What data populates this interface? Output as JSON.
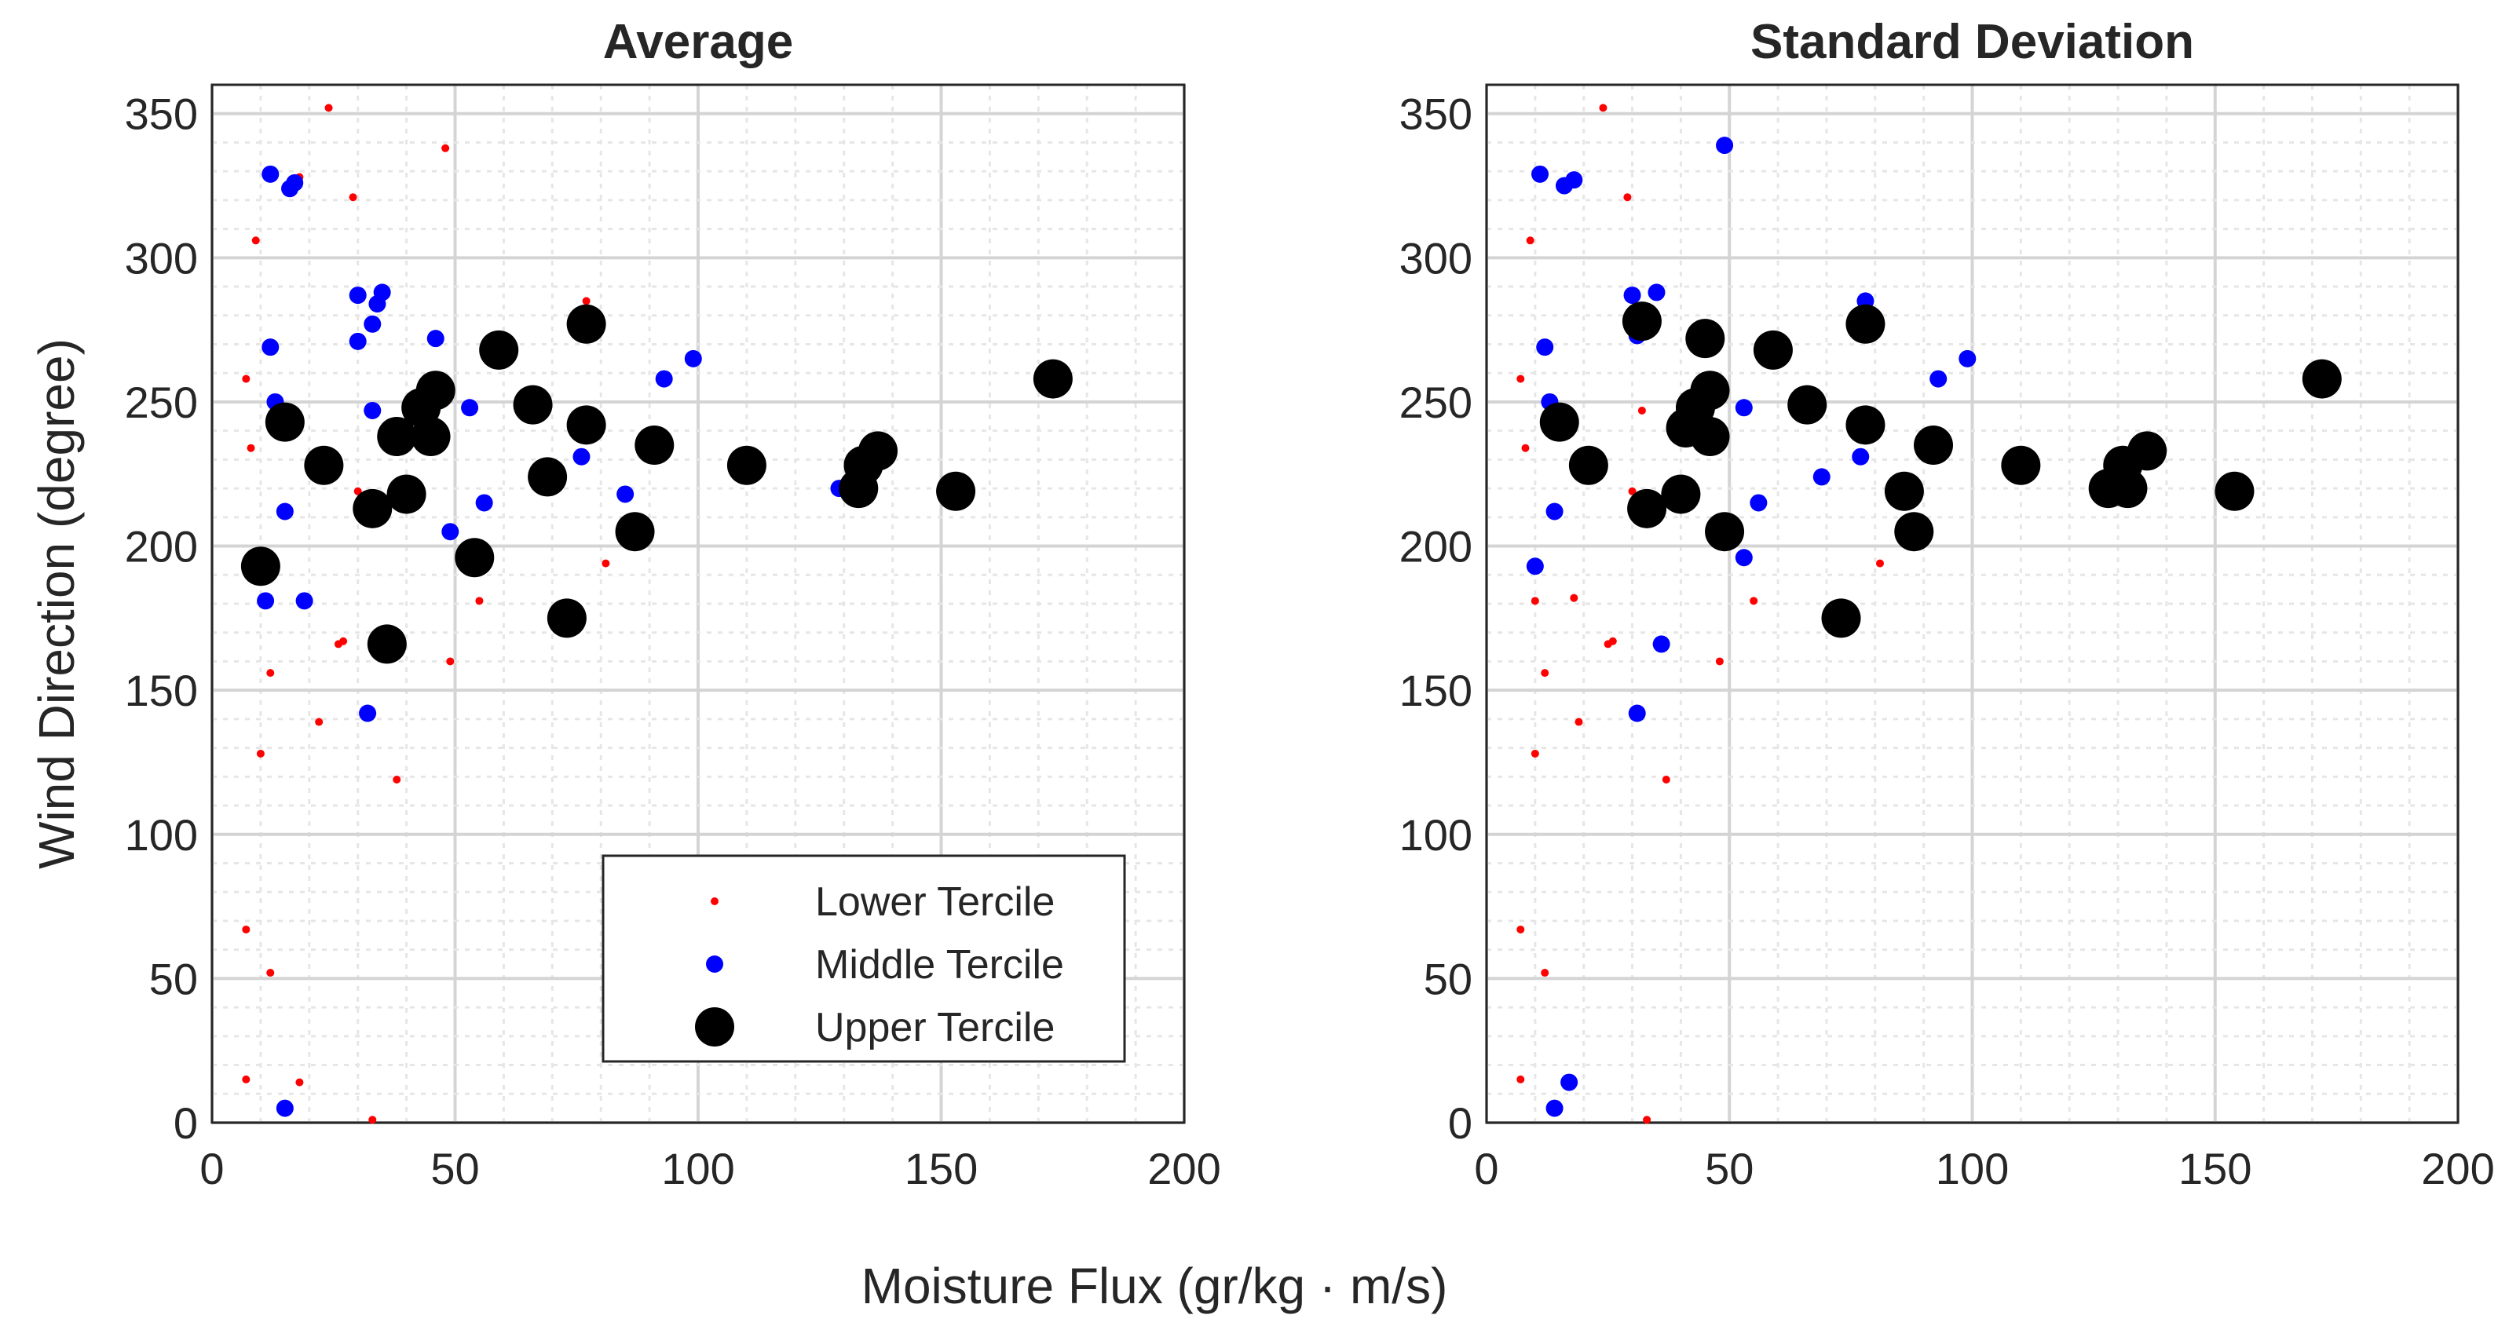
{
  "figure": {
    "xlabel": "Moisture Flux (gr/kg · m/s)"
  },
  "legend": {
    "entries": [
      {
        "label": "Lower Tercile",
        "color": "#ff0000",
        "marker": "small-dot"
      },
      {
        "label": "Middle Tercile",
        "color": "#0000ff",
        "marker": "medium-dot"
      },
      {
        "label": "Upper Tercile",
        "color": "#000000",
        "marker": "large-dot"
      }
    ]
  },
  "chart_data": [
    {
      "type": "scatter",
      "title": "Average",
      "xlabel": "Moisture Flux (gr/kg · m/s)",
      "ylabel": "Wind Direction (degree)",
      "xlim": [
        0,
        200
      ],
      "ylim": [
        0,
        360
      ],
      "xticks": [
        0,
        50,
        100,
        150,
        200
      ],
      "yticks": [
        0,
        50,
        100,
        150,
        200,
        250,
        300,
        350
      ],
      "grid": true,
      "legend_position": "lower-right",
      "series": [
        {
          "name": "Lower Tercile",
          "color": "#ff0000",
          "size": "small",
          "points": [
            [
              24,
              352
            ],
            [
              48,
              338
            ],
            [
              18,
              328
            ],
            [
              29,
              321
            ],
            [
              9,
              306
            ],
            [
              7,
              258
            ],
            [
              8,
              234
            ],
            [
              12,
              156
            ],
            [
              10,
              128
            ],
            [
              22,
              139
            ],
            [
              26,
              166
            ],
            [
              27,
              167
            ],
            [
              38,
              119
            ],
            [
              55,
              181
            ],
            [
              81,
              194
            ],
            [
              49,
              160
            ],
            [
              7,
              67
            ],
            [
              12,
              52
            ],
            [
              7,
              15
            ],
            [
              18,
              14
            ],
            [
              33,
              1
            ],
            [
              77,
              285
            ],
            [
              33,
              142
            ],
            [
              30,
              219
            ]
          ]
        },
        {
          "name": "Middle Tercile",
          "color": "#0000ff",
          "size": "medium",
          "points": [
            [
              12,
              329
            ],
            [
              16,
              324
            ],
            [
              17,
              326
            ],
            [
              12,
              269
            ],
            [
              30,
              287
            ],
            [
              35,
              288
            ],
            [
              34,
              284
            ],
            [
              33,
              277
            ],
            [
              30,
              271
            ],
            [
              46,
              272
            ],
            [
              33,
              247
            ],
            [
              53,
              248
            ],
            [
              99,
              265
            ],
            [
              93,
              258
            ],
            [
              76,
              231
            ],
            [
              85,
              218
            ],
            [
              15,
              212
            ],
            [
              56,
              215
            ],
            [
              49,
              205
            ],
            [
              11,
              181
            ],
            [
              19,
              181
            ],
            [
              32,
              142
            ],
            [
              15,
              5
            ],
            [
              129,
              220
            ],
            [
              13,
              250
            ]
          ]
        },
        {
          "name": "Upper Tercile",
          "color": "#000000",
          "size": "large",
          "points": [
            [
              15,
              243
            ],
            [
              23,
              228
            ],
            [
              33,
              213
            ],
            [
              38,
              238
            ],
            [
              40,
              218
            ],
            [
              43,
              248
            ],
            [
              45,
              238
            ],
            [
              46,
              254
            ],
            [
              59,
              268
            ],
            [
              66,
              249
            ],
            [
              69,
              224
            ],
            [
              77,
              277
            ],
            [
              77,
              242
            ],
            [
              91,
              235
            ],
            [
              87,
              205
            ],
            [
              110,
              228
            ],
            [
              133,
              220
            ],
            [
              134,
              228
            ],
            [
              137,
              233
            ],
            [
              153,
              219
            ],
            [
              173,
              258
            ],
            [
              10,
              193
            ],
            [
              36,
              166
            ],
            [
              54,
              196
            ],
            [
              73,
              175
            ]
          ]
        }
      ]
    },
    {
      "type": "scatter",
      "title": "Standard Deviation",
      "xlabel": "Moisture Flux (gr/kg · m/s)",
      "ylabel": "Wind Direction (degree)",
      "xlim": [
        0,
        200
      ],
      "ylim": [
        0,
        360
      ],
      "xticks": [
        0,
        50,
        100,
        150,
        200
      ],
      "yticks": [
        0,
        50,
        100,
        150,
        200,
        250,
        300,
        350
      ],
      "grid": true,
      "series": [
        {
          "name": "Lower Tercile",
          "color": "#ff0000",
          "size": "small",
          "points": [
            [
              24,
              352
            ],
            [
              29,
              321
            ],
            [
              9,
              306
            ],
            [
              7,
              258
            ],
            [
              8,
              234
            ],
            [
              12,
              156
            ],
            [
              10,
              128
            ],
            [
              19,
              139
            ],
            [
              25,
              166
            ],
            [
              26,
              167
            ],
            [
              37,
              119
            ],
            [
              55,
              181
            ],
            [
              81,
              194
            ],
            [
              48,
              160
            ],
            [
              7,
              67
            ],
            [
              12,
              52
            ],
            [
              7,
              15
            ],
            [
              33,
              1
            ],
            [
              10,
              181
            ],
            [
              18,
              182
            ],
            [
              32,
              247
            ],
            [
              30,
              219
            ]
          ]
        },
        {
          "name": "Middle Tercile",
          "color": "#0000ff",
          "size": "medium",
          "points": [
            [
              11,
              329
            ],
            [
              16,
              325
            ],
            [
              18,
              327
            ],
            [
              49,
              339
            ],
            [
              30,
              287
            ],
            [
              35,
              288
            ],
            [
              31,
              273
            ],
            [
              78,
              285
            ],
            [
              12,
              269
            ],
            [
              53,
              248
            ],
            [
              99,
              265
            ],
            [
              93,
              258
            ],
            [
              77,
              231
            ],
            [
              69,
              224
            ],
            [
              14,
              212
            ],
            [
              56,
              215
            ],
            [
              53,
              196
            ],
            [
              10,
              193
            ],
            [
              36,
              166
            ],
            [
              31,
              142
            ],
            [
              17,
              14
            ],
            [
              14,
              5
            ],
            [
              13,
              250
            ]
          ]
        },
        {
          "name": "Upper Tercile",
          "color": "#000000",
          "size": "large",
          "points": [
            [
              32,
              278
            ],
            [
              45,
              272
            ],
            [
              15,
              243
            ],
            [
              21,
              228
            ],
            [
              33,
              213
            ],
            [
              41,
              241
            ],
            [
              40,
              218
            ],
            [
              43,
              248
            ],
            [
              46,
              238
            ],
            [
              46,
              254
            ],
            [
              49,
              205
            ],
            [
              59,
              268
            ],
            [
              66,
              249
            ],
            [
              78,
              277
            ],
            [
              78,
              242
            ],
            [
              92,
              235
            ],
            [
              86,
              219
            ],
            [
              88,
              205
            ],
            [
              110,
              228
            ],
            [
              128,
              220
            ],
            [
              131,
              228
            ],
            [
              136,
              233
            ],
            [
              132,
              220
            ],
            [
              154,
              219
            ],
            [
              172,
              258
            ],
            [
              73,
              175
            ]
          ]
        }
      ]
    }
  ]
}
